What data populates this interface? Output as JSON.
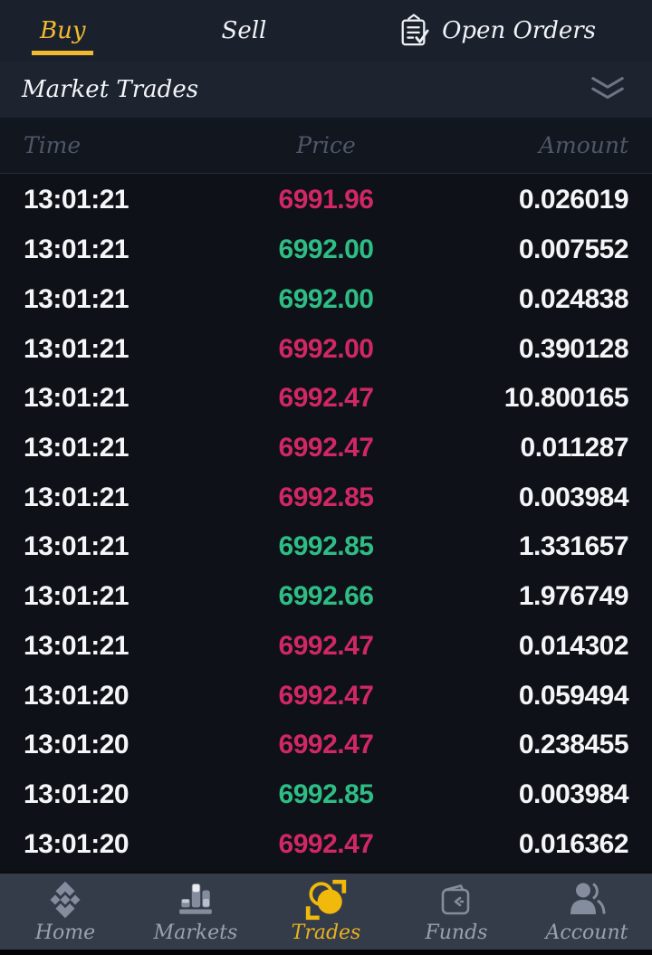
{
  "tabs": {
    "buy": {
      "label": "Buy",
      "active": true
    },
    "sell": {
      "label": "Sell",
      "active": false
    },
    "open_orders": {
      "label": "Open Orders",
      "icon": "open-orders-icon"
    }
  },
  "section": {
    "title": "Market Trades",
    "collapse_icon": "chevron-double-down-icon"
  },
  "table": {
    "columns": [
      "Time",
      "Price",
      "Amount"
    ],
    "rows": [
      {
        "time": "13:01:21",
        "price": "6991.96",
        "direction": "down",
        "amount": "0.026019"
      },
      {
        "time": "13:01:21",
        "price": "6992.00",
        "direction": "up",
        "amount": "0.007552"
      },
      {
        "time": "13:01:21",
        "price": "6992.00",
        "direction": "up",
        "amount": "0.024838"
      },
      {
        "time": "13:01:21",
        "price": "6992.00",
        "direction": "down",
        "amount": "0.390128"
      },
      {
        "time": "13:01:21",
        "price": "6992.47",
        "direction": "down",
        "amount": "10.800165"
      },
      {
        "time": "13:01:21",
        "price": "6992.47",
        "direction": "down",
        "amount": "0.011287"
      },
      {
        "time": "13:01:21",
        "price": "6992.85",
        "direction": "down",
        "amount": "0.003984"
      },
      {
        "time": "13:01:21",
        "price": "6992.85",
        "direction": "up",
        "amount": "1.331657"
      },
      {
        "time": "13:01:21",
        "price": "6992.66",
        "direction": "up",
        "amount": "1.976749"
      },
      {
        "time": "13:01:21",
        "price": "6992.47",
        "direction": "down",
        "amount": "0.014302"
      },
      {
        "time": "13:01:20",
        "price": "6992.47",
        "direction": "down",
        "amount": "0.059494"
      },
      {
        "time": "13:01:20",
        "price": "6992.47",
        "direction": "down",
        "amount": "0.238455"
      },
      {
        "time": "13:01:20",
        "price": "6992.85",
        "direction": "up",
        "amount": "0.003984"
      },
      {
        "time": "13:01:20",
        "price": "6992.47",
        "direction": "down",
        "amount": "0.016362"
      }
    ]
  },
  "nav": {
    "items": [
      {
        "label": "Home",
        "icon": "binance-logo-icon",
        "active": false
      },
      {
        "label": "Markets",
        "icon": "bar-chart-icon",
        "active": false
      },
      {
        "label": "Trades",
        "icon": "coins-exchange-icon",
        "active": true
      },
      {
        "label": "Funds",
        "icon": "wallet-icon",
        "active": false
      },
      {
        "label": "Account",
        "icon": "person-icon",
        "active": false
      }
    ]
  },
  "colors": {
    "accent_yellow": "#f3ba2f",
    "price_up_green": "#2ebd85",
    "price_down_pink": "#d02765",
    "topbar_bg": "#1b212c",
    "table_bg": "#0e1117",
    "nav_bg": "#343b49"
  }
}
